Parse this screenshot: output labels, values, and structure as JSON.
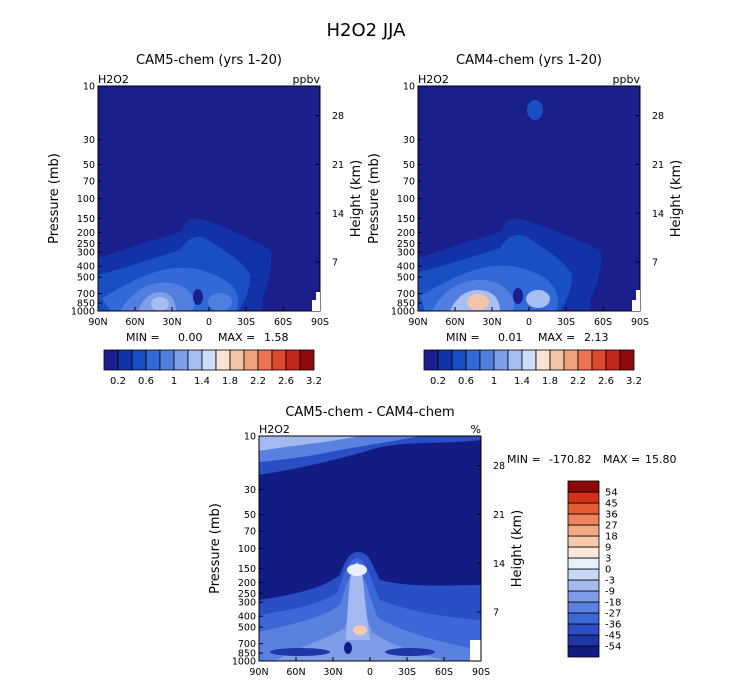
{
  "figure_title": "H2O2 JJA",
  "colors": {
    "abs_palette": [
      "#1a1f8c",
      "#1233a8",
      "#1a4fc4",
      "#3169d6",
      "#527ee0",
      "#7c9fe8",
      "#a6bff0",
      "#cfdcf6",
      "#f7e3d6",
      "#f5c3a8",
      "#f2a07e",
      "#ec7450",
      "#dd4a2e",
      "#c4261a",
      "#8f0a0a"
    ],
    "diff_palette": [
      "#131b84",
      "#1e36a8",
      "#2a4ec4",
      "#3d66d6",
      "#5a80e0",
      "#7f9ce8",
      "#a3b9f0",
      "#c8d7f6",
      "#eaf0fb",
      "#fbe7dc",
      "#f7c9ad",
      "#f4a986",
      "#ef835c",
      "#e65a36",
      "#d13118",
      "#8e0707"
    ]
  },
  "chart_data": [
    {
      "type": "heatmap",
      "title": "CAM5-chem (yrs 1-20)",
      "variable": "H2O2",
      "units": "ppbv",
      "xlabel": "",
      "ylabel": "Pressure (mb)",
      "ylabel_right": "Height (km)",
      "x_ticks": [
        "90N",
        "60N",
        "30N",
        "0",
        "30S",
        "60S",
        "90S"
      ],
      "y_ticks": [
        "10",
        "30",
        "50",
        "70",
        "100",
        "150",
        "200",
        "250",
        "300",
        "400",
        "500",
        "700",
        "850",
        "1000"
      ],
      "y_right_ticks": [
        "28",
        "21",
        "14",
        "7"
      ],
      "min": "0.00",
      "max": "1.58",
      "min_label": "MIN =",
      "max_label": "MAX =",
      "colorbar_labels": [
        "0.2",
        "0.6",
        "1",
        "1.4",
        "1.8",
        "2.2",
        "2.6",
        "3.2"
      ]
    },
    {
      "type": "heatmap",
      "title": "CAM4-chem (yrs 1-20)",
      "variable": "H2O2",
      "units": "ppbv",
      "xlabel": "",
      "ylabel": "Pressure (mb)",
      "ylabel_right": "Height (km)",
      "x_ticks": [
        "90N",
        "60N",
        "30N",
        "0",
        "30S",
        "60S",
        "90S"
      ],
      "y_ticks": [
        "10",
        "30",
        "50",
        "70",
        "100",
        "150",
        "200",
        "250",
        "300",
        "400",
        "500",
        "700",
        "850",
        "1000"
      ],
      "y_right_ticks": [
        "28",
        "21",
        "14",
        "7"
      ],
      "min": "0.01",
      "max": "2.13",
      "min_label": "MIN =",
      "max_label": "MAX =",
      "colorbar_labels": [
        "0.2",
        "0.6",
        "1",
        "1.4",
        "1.8",
        "2.2",
        "2.6",
        "3.2"
      ]
    },
    {
      "type": "heatmap",
      "title": "CAM5-chem - CAM4-chem",
      "variable": "H2O2",
      "units": "%",
      "xlabel": "",
      "ylabel": "Pressure (mb)",
      "ylabel_right": "Height (km)",
      "x_ticks": [
        "90N",
        "60N",
        "30N",
        "0",
        "30S",
        "60S",
        "90S"
      ],
      "y_ticks": [
        "10",
        "30",
        "50",
        "70",
        "100",
        "150",
        "200",
        "250",
        "300",
        "400",
        "500",
        "700",
        "850",
        "1000"
      ],
      "y_right_ticks": [
        "28",
        "21",
        "14",
        "7"
      ],
      "min": "-170.82",
      "max": "15.80",
      "min_label": "MIN =",
      "max_label": "MAX =",
      "colorbar_labels": [
        "54",
        "45",
        "36",
        "27",
        "18",
        "9",
        "3",
        "0",
        "-3",
        "-9",
        "-18",
        "-27",
        "-36",
        "-45",
        "-54"
      ]
    }
  ]
}
